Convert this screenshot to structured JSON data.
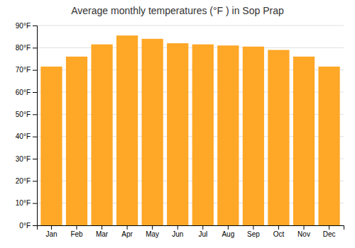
{
  "chart_data": {
    "type": "bar",
    "title": "Average monthly temperatures (°F ) in Sop Prap",
    "categories": [
      "Jan",
      "Feb",
      "Mar",
      "Apr",
      "May",
      "Jun",
      "Jul",
      "Aug",
      "Sep",
      "Oct",
      "Nov",
      "Dec"
    ],
    "values": [
      71.5,
      76,
      81.5,
      85.5,
      84,
      82,
      81.5,
      81,
      80.5,
      79,
      76,
      71.5
    ],
    "color": "#FFA726",
    "ylim": [
      0,
      90
    ],
    "yticks": [
      {
        "value": 0,
        "label": "0°F"
      },
      {
        "value": 10,
        "label": "10°F"
      },
      {
        "value": 20,
        "label": "20°F"
      },
      {
        "value": 30,
        "label": "30°F"
      },
      {
        "value": 40,
        "label": "40°F"
      },
      {
        "value": 50,
        "label": "50°F"
      },
      {
        "value": 60,
        "label": "60°F"
      },
      {
        "value": 70,
        "label": "70°F"
      },
      {
        "value": 80,
        "label": "80°F"
      },
      {
        "value": 90,
        "label": "90°F"
      }
    ],
    "grid": true
  }
}
